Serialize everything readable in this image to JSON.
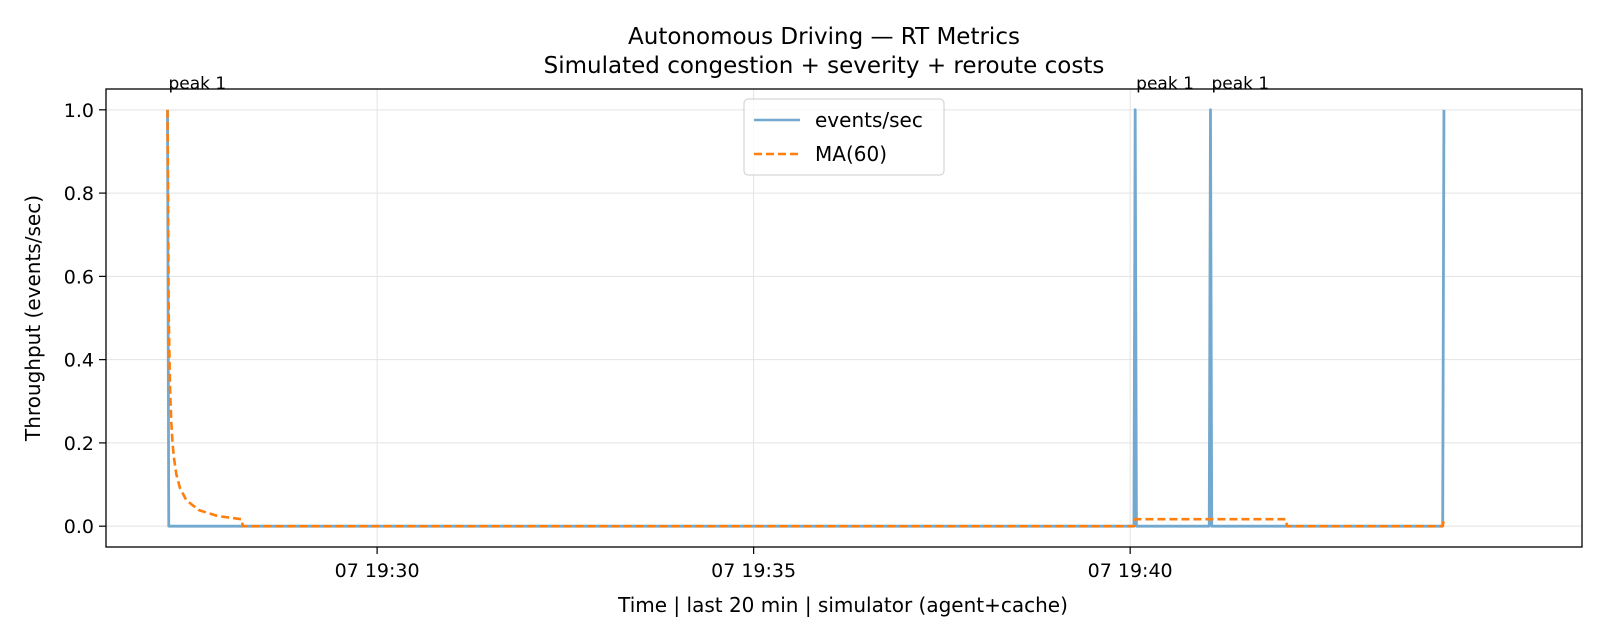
{
  "chart_data": {
    "type": "line",
    "title": "Autonomous Driving — RT Metrics",
    "subtitle": "Simulated congestion + severity + reroute costs",
    "xlabel": "Time | last 20 min | simulator (agent+cache)",
    "ylabel": "Throughput (events/sec)",
    "xlim": [
      "19:26:24",
      "19:46:00"
    ],
    "ylim": [
      -0.05,
      1.05
    ],
    "x_ticks": [
      {
        "x": "19:30:00",
        "label": "07 19:30"
      },
      {
        "x": "19:35:00",
        "label": "07 19:35"
      },
      {
        "x": "19:40:00",
        "label": "07 19:40"
      }
    ],
    "y_ticks": [
      {
        "y": 0.0,
        "label": "0.0"
      },
      {
        "y": 0.2,
        "label": "0.2"
      },
      {
        "y": 0.4,
        "label": "0.4"
      },
      {
        "y": 0.6,
        "label": "0.6"
      },
      {
        "y": 0.8,
        "label": "0.8"
      },
      {
        "y": 1.0,
        "label": "1.0"
      }
    ],
    "grid": true,
    "legend_position": "upper center",
    "series": [
      {
        "name": "events/sec",
        "color": "#74a9cf",
        "style": "solid",
        "points": [
          {
            "x": "19:27:13",
            "y": 1.0
          },
          {
            "x": "19:27:14",
            "y": 0.0
          },
          {
            "x": "19:40:03",
            "y": 0.0
          },
          {
            "x": "19:40:04",
            "y": 1.0
          },
          {
            "x": "19:40:05",
            "y": 0.0
          },
          {
            "x": "19:41:03",
            "y": 0.0
          },
          {
            "x": "19:41:04",
            "y": 1.0
          },
          {
            "x": "19:41:05",
            "y": 0.0
          },
          {
            "x": "19:44:09",
            "y": 0.0
          },
          {
            "x": "19:44:10",
            "y": 1.0
          }
        ]
      },
      {
        "name": "MA(60)",
        "color": "#ff7f0e",
        "style": "dashed",
        "points": [
          {
            "x": "19:27:13",
            "y": 1.0
          },
          {
            "x": "19:27:14",
            "y": 0.5
          },
          {
            "x": "19:27:15",
            "y": 0.333
          },
          {
            "x": "19:27:16",
            "y": 0.25
          },
          {
            "x": "19:27:17",
            "y": 0.2
          },
          {
            "x": "19:27:18",
            "y": 0.167
          },
          {
            "x": "19:27:20",
            "y": 0.125
          },
          {
            "x": "19:27:23",
            "y": 0.091
          },
          {
            "x": "19:27:28",
            "y": 0.0625
          },
          {
            "x": "19:27:38",
            "y": 0.0385
          },
          {
            "x": "19:27:53",
            "y": 0.0244
          },
          {
            "x": "19:28:12",
            "y": 0.0167
          },
          {
            "x": "19:28:13",
            "y": 0.0
          },
          {
            "x": "19:40:03",
            "y": 0.0
          },
          {
            "x": "19:40:04",
            "y": 0.0167
          },
          {
            "x": "19:42:04",
            "y": 0.0167
          },
          {
            "x": "19:42:05",
            "y": 0.0
          },
          {
            "x": "19:44:09",
            "y": 0.0
          },
          {
            "x": "19:44:10",
            "y": 0.0167
          }
        ]
      }
    ],
    "annotations": [
      {
        "x": "19:27:13",
        "y": 1.0,
        "text": "peak 1"
      },
      {
        "x": "19:40:04",
        "y": 1.0,
        "text": "peak 1"
      },
      {
        "x": "19:41:04",
        "y": 1.0,
        "text": "peak 1"
      }
    ]
  }
}
